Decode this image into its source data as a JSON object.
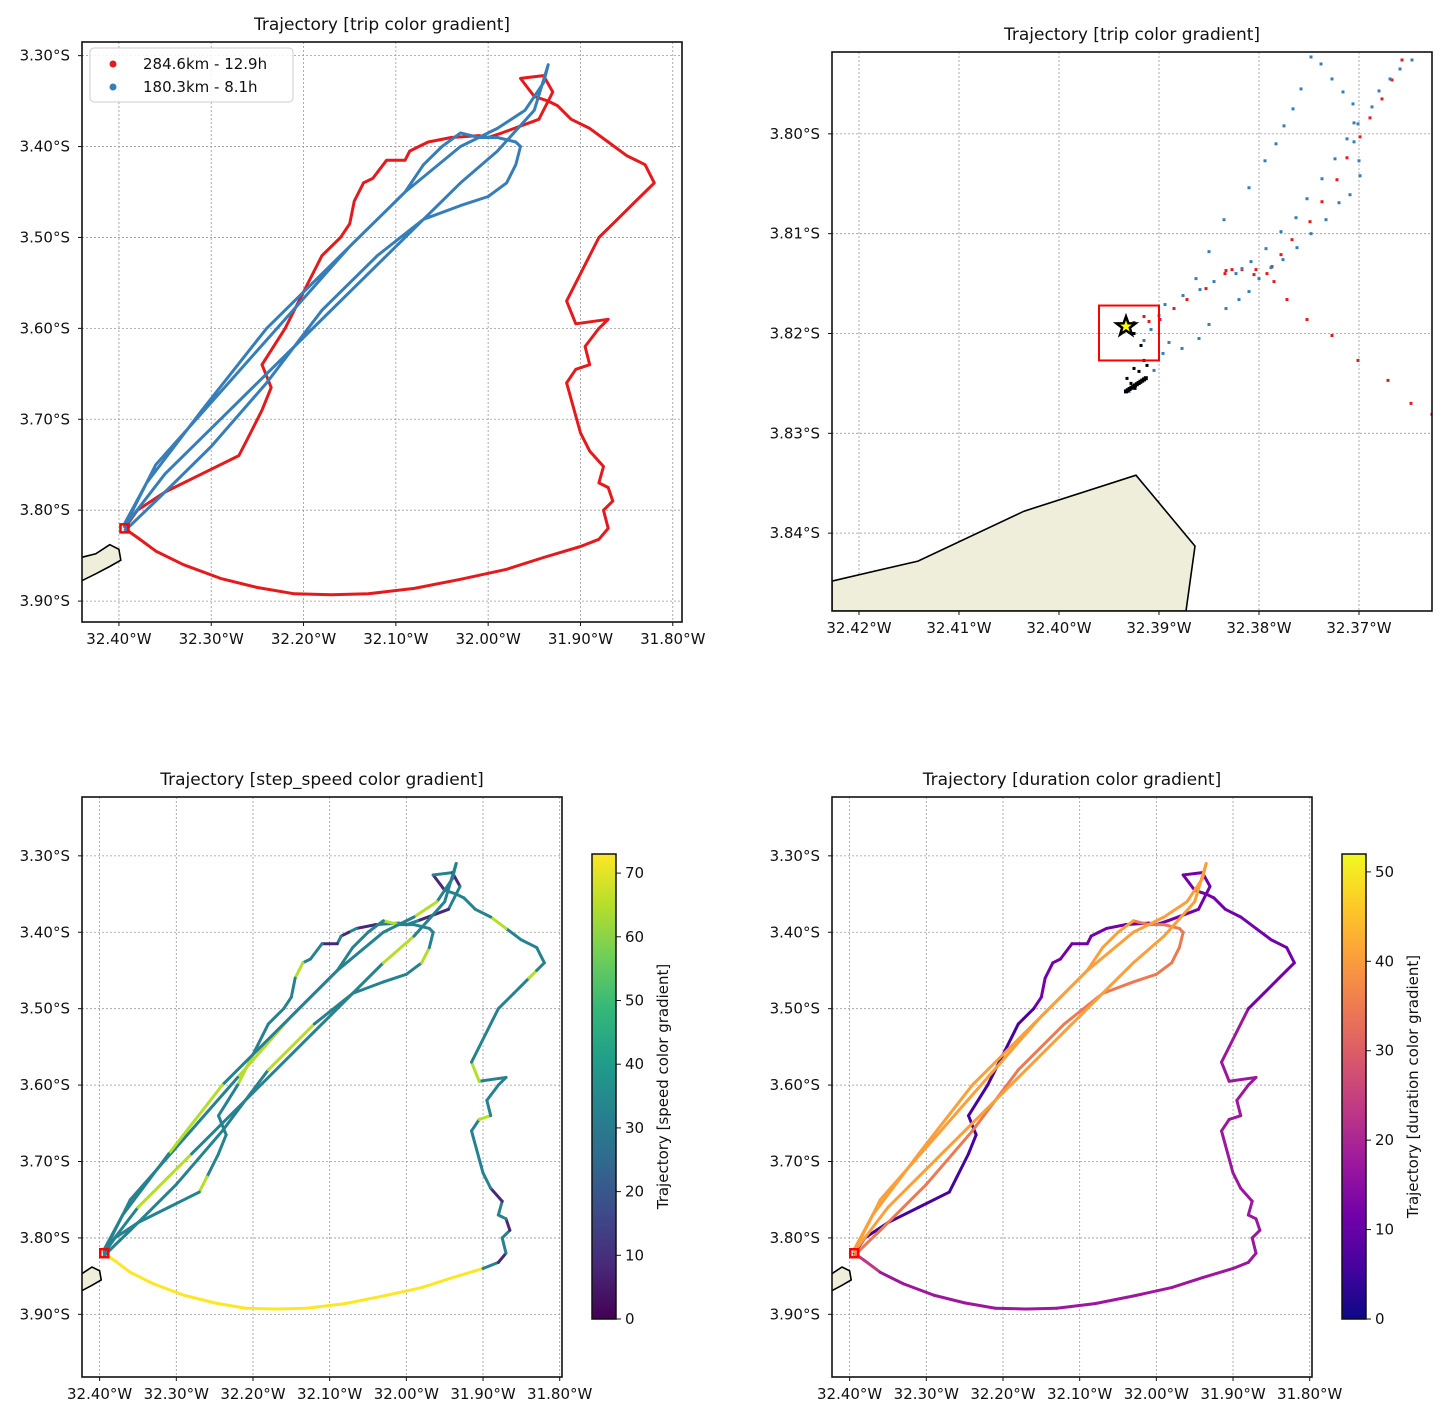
{
  "colors": {
    "trip1": "#e41a1c",
    "trip2": "#377eb8",
    "land": "#efeedb",
    "start_marker": "#ff0000",
    "star_fill": "#ffff00"
  },
  "chart_data": [
    {
      "type": "line",
      "panel": "top-left",
      "title": "Trajectory [trip color gradient]",
      "xlim": [
        -32.44,
        -31.79
      ],
      "ylim": [
        -3.923,
        -3.285
      ],
      "xticks": [
        -32.4,
        -32.3,
        -32.2,
        -32.1,
        -32.0,
        -31.9,
        -31.8
      ],
      "xtick_labels": [
        "32.40°W",
        "32.30°W",
        "32.20°W",
        "32.10°W",
        "32.00°W",
        "31.90°W",
        "31.80°W"
      ],
      "yticks": [
        -3.3,
        -3.4,
        -3.5,
        -3.6,
        -3.7,
        -3.8,
        -3.9
      ],
      "ytick_labels": [
        "3.30°S",
        "3.40°S",
        "3.50°S",
        "3.60°S",
        "3.70°S",
        "3.80°S",
        "3.90°S"
      ],
      "grid": true,
      "legend": {
        "position": "top-left",
        "entries": [
          "284.6km - 12.9h",
          "180.3km - 8.1h"
        ]
      },
      "series": [
        {
          "name": "284.6km - 12.9h",
          "color": "#e41a1c",
          "lon": [
            -32.394,
            -32.38,
            -32.36,
            -32.33,
            -32.29,
            -32.25,
            -32.21,
            -32.17,
            -32.13,
            -32.08,
            -32.03,
            -31.98,
            -31.94,
            -31.9,
            -31.88,
            -31.87,
            -31.875,
            -31.865,
            -31.87,
            -31.88,
            -31.875,
            -31.89,
            -31.9,
            -31.915,
            -31.905,
            -31.89,
            -31.895,
            -31.88,
            -31.87,
            -31.905,
            -31.915,
            -31.905,
            -31.88,
            -31.86,
            -31.84,
            -31.83,
            -31.82,
            -31.83,
            -31.85,
            -31.87,
            -31.89,
            -31.91,
            -31.925,
            -31.935,
            -31.95,
            -31.965,
            -31.94,
            -31.93,
            -31.945,
            -31.985,
            -32.0,
            -32.01,
            -32.04,
            -32.065,
            -32.075,
            -32.085,
            -32.09,
            -32.11,
            -32.125,
            -32.135,
            -32.145,
            -32.15,
            -32.16,
            -32.18,
            -32.2,
            -32.22,
            -32.245,
            -32.235,
            -32.245,
            -32.26,
            -32.27,
            -32.31,
            -32.35,
            -32.38,
            -32.394
          ],
          "lat": [
            -3.82,
            -3.83,
            -3.845,
            -3.86,
            -3.875,
            -3.885,
            -3.892,
            -3.893,
            -3.892,
            -3.886,
            -3.876,
            -3.865,
            -3.852,
            -3.84,
            -3.832,
            -3.82,
            -3.8,
            -3.79,
            -3.775,
            -3.77,
            -3.752,
            -3.735,
            -3.715,
            -3.66,
            -3.645,
            -3.64,
            -3.62,
            -3.6,
            -3.59,
            -3.595,
            -3.57,
            -3.55,
            -3.5,
            -3.48,
            -3.46,
            -3.45,
            -3.44,
            -3.42,
            -3.41,
            -3.395,
            -3.38,
            -3.37,
            -3.355,
            -3.35,
            -3.345,
            -3.325,
            -3.322,
            -3.34,
            -3.37,
            -3.385,
            -3.39,
            -3.388,
            -3.39,
            -3.395,
            -3.4,
            -3.405,
            -3.415,
            -3.415,
            -3.435,
            -3.44,
            -3.46,
            -3.485,
            -3.5,
            -3.52,
            -3.56,
            -3.6,
            -3.64,
            -3.665,
            -3.69,
            -3.72,
            -3.74,
            -3.76,
            -3.78,
            -3.8,
            -3.82
          ]
        },
        {
          "name": "180.3km - 8.1h",
          "color": "#377eb8",
          "lon": [
            -32.394,
            -32.36,
            -32.3,
            -32.24,
            -32.18,
            -32.12,
            -32.07,
            -32.03,
            -32.0,
            -31.98,
            -31.97,
            -31.965,
            -31.97,
            -31.99,
            -32.01,
            -32.03,
            -32.05,
            -32.07,
            -32.09,
            -32.15,
            -32.22,
            -32.29,
            -32.36,
            -32.394,
            -32.35,
            -32.28,
            -32.2,
            -32.12,
            -32.06,
            -32.03,
            -31.99,
            -31.95,
            -31.935,
            -31.94,
            -31.96,
            -31.99,
            -32.03,
            -32.09,
            -32.16,
            -32.24,
            -32.31,
            -32.37,
            -32.394
          ],
          "lat": [
            -3.823,
            -3.79,
            -3.73,
            -3.66,
            -3.58,
            -3.52,
            -3.48,
            -3.465,
            -3.455,
            -3.44,
            -3.42,
            -3.4,
            -3.395,
            -3.39,
            -3.39,
            -3.385,
            -3.4,
            -3.42,
            -3.45,
            -3.51,
            -3.59,
            -3.67,
            -3.75,
            -3.818,
            -3.76,
            -3.69,
            -3.61,
            -3.53,
            -3.47,
            -3.44,
            -3.405,
            -3.36,
            -3.31,
            -3.33,
            -3.36,
            -3.38,
            -3.4,
            -3.45,
            -3.52,
            -3.6,
            -3.69,
            -3.77,
            -3.815
          ]
        }
      ]
    },
    {
      "type": "scatter",
      "panel": "top-right",
      "title": "Trajectory [trip color gradient]",
      "xlim": [
        -32.4227,
        -32.3627
      ],
      "ylim": [
        -3.8478,
        -3.7918
      ],
      "xticks": [
        -32.42,
        -32.41,
        -32.4,
        -32.39,
        -32.38,
        -32.37
      ],
      "xtick_labels": [
        "32.42°W",
        "32.41°W",
        "32.40°W",
        "32.39°W",
        "32.38°W",
        "32.37°W"
      ],
      "yticks": [
        -3.8,
        -3.81,
        -3.82,
        -3.83,
        -3.84
      ],
      "ytick_labels": [
        "3.80°S",
        "3.81°S",
        "3.82°S",
        "3.83°S",
        "3.84°S"
      ],
      "grid": true,
      "series": [
        {
          "name": "284.6km - 12.9h",
          "color": "#e41a1c",
          "lon": [
            -32.3657,
            -32.3667,
            -32.3677,
            -32.3689,
            -32.3699,
            -32.3712,
            -32.3722,
            -32.3737,
            -32.3749,
            -32.3767,
            -32.3778,
            -32.3787,
            -32.3805,
            -32.3817,
            -32.3833,
            -32.3853,
            -32.3872,
            -32.3885,
            -32.3915,
            -32.3925,
            -32.3899,
            -32.391,
            -32.3803,
            -32.3827,
            -32.3834,
            -32.3792,
            -32.3785,
            -32.3772,
            -32.3752,
            -32.3727,
            -32.3701,
            -32.3671,
            -32.3648,
            -32.3627
          ],
          "lat": [
            -3.7926,
            -3.7946,
            -3.7965,
            -3.7984,
            -3.8003,
            -3.8024,
            -3.8046,
            -3.8068,
            -3.8088,
            -3.8106,
            -3.8121,
            -3.8133,
            -3.8141,
            -3.8136,
            -3.8137,
            -3.8155,
            -3.8166,
            -3.8175,
            -3.8183,
            -3.8189,
            -3.8186,
            -3.8188,
            -3.8136,
            -3.8136,
            -3.814,
            -3.814,
            -3.8148,
            -3.8166,
            -3.8186,
            -3.8202,
            -3.8227,
            -3.8247,
            -3.827,
            -3.8281
          ]
        },
        {
          "name": "180.3km - 8.1h",
          "color": "#377eb8",
          "lon": [
            -32.3647,
            -32.3659,
            -32.3669,
            -32.368,
            -32.3687,
            -32.3701,
            -32.3712,
            -32.3724,
            -32.3737,
            -32.3752,
            -32.3763,
            -32.3778,
            -32.3793,
            -32.3808,
            -32.3817,
            -32.3823,
            -32.3845,
            -32.3859,
            -32.3876,
            -32.3894,
            -32.39,
            -32.3908,
            -32.3915,
            -32.3896,
            -32.3877,
            -32.386,
            -32.385,
            -32.3833,
            -32.382,
            -32.381,
            -32.38,
            -32.3788,
            -32.3776,
            -32.3762,
            -32.3748,
            -32.3733,
            -32.372,
            -32.3709,
            -32.3699,
            -32.37,
            -32.3705,
            -32.3705,
            -32.3706,
            -32.3716,
            -32.3727,
            -32.3738,
            -32.3748,
            -32.3758,
            -32.3766,
            -32.3775,
            -32.3783,
            -32.3794,
            -32.381,
            -32.3835,
            -32.385,
            -32.3863,
            -32.389,
            -32.3905,
            -32.3921,
            -32.393
          ],
          "lat": [
            -3.7926,
            -3.7935,
            -3.7945,
            -3.7957,
            -3.7973,
            -3.799,
            -3.8005,
            -3.8025,
            -3.8045,
            -3.8065,
            -3.8084,
            -3.8098,
            -3.8115,
            -3.8128,
            -3.8135,
            -3.814,
            -3.8148,
            -3.8156,
            -3.8162,
            -3.8171,
            -3.8182,
            -3.8196,
            -3.8207,
            -3.822,
            -3.8215,
            -3.8205,
            -3.8191,
            -3.8175,
            -3.8166,
            -3.8158,
            -3.8145,
            -3.8134,
            -3.8126,
            -3.8114,
            -3.81,
            -3.8086,
            -3.8069,
            -3.8061,
            -3.8042,
            -3.8027,
            -3.8008,
            -3.7989,
            -3.797,
            -3.7958,
            -3.7945,
            -3.793,
            -3.7923,
            -3.7955,
            -3.7975,
            -3.7992,
            -3.801,
            -3.8027,
            -3.8054,
            -3.8086,
            -3.8118,
            -3.8145,
            -3.8209,
            -3.8237,
            -3.825,
            -3.8258
          ]
        },
        {
          "name": "track-points",
          "color": "#000000",
          "lon": [
            -32.393,
            -32.3925,
            -32.3918,
            -32.3915,
            -32.3912,
            -32.3925,
            -32.3932,
            -32.3928,
            -32.3924,
            -32.392,
            -32.3933
          ],
          "lat": [
            -3.8193,
            -3.82,
            -3.8212,
            -3.8227,
            -3.8232,
            -3.8235,
            -3.8245,
            -3.825,
            -3.8255,
            -3.8238,
            -3.8258
          ]
        }
      ],
      "markers": {
        "star": {
          "lon": -32.3933,
          "lat": -3.8193
        },
        "highlight_box": {
          "lon": [
            -32.396,
            -32.39
          ],
          "lat": [
            -3.8172,
            -3.8227
          ]
        }
      },
      "land_polygon": {
        "lon": [
          -32.4227,
          -32.4141,
          -32.4035,
          -32.3923,
          -32.3864,
          -32.3873,
          -32.4227
        ],
        "lat": [
          -3.8448,
          -3.8428,
          -3.8378,
          -3.8342,
          -3.8413,
          -3.8478,
          -3.8478
        ]
      }
    },
    {
      "type": "line",
      "panel": "bottom-left",
      "title": "Trajectory [step_speed color gradient]",
      "colorbar": {
        "label": "Trajectory [speed color gradient]",
        "colormap": "viridis",
        "range": [
          0,
          73
        ],
        "ticks": [
          0,
          10,
          20,
          30,
          40,
          50,
          60,
          70
        ]
      },
      "xlim": [
        -32.423,
        -31.797
      ],
      "ylim": [
        -3.982,
        -3.223
      ],
      "xticks": [
        -32.4,
        -32.3,
        -32.2,
        -32.1,
        -32.0,
        -31.9,
        -31.8
      ],
      "xtick_labels": [
        "32.40°W",
        "32.30°W",
        "32.20°W",
        "32.10°W",
        "32.00°W",
        "31.90°W",
        "31.80°W"
      ],
      "yticks": [
        -3.3,
        -3.4,
        -3.5,
        -3.6,
        -3.7,
        -3.8,
        -3.9
      ],
      "ytick_labels": [
        "3.30°S",
        "3.40°S",
        "3.50°S",
        "3.60°S",
        "3.70°S",
        "3.80°S",
        "3.90°S"
      ],
      "grid": true
    },
    {
      "type": "line",
      "panel": "bottom-right",
      "title": "Trajectory [duration color gradient]",
      "colorbar": {
        "label": "Trajectory [duration color gradient]",
        "colormap": "plasma",
        "range": [
          0,
          52
        ],
        "ticks": [
          0,
          10,
          20,
          30,
          40,
          50
        ]
      },
      "xlim": [
        -32.423,
        -31.797
      ],
      "ylim": [
        -3.982,
        -3.223
      ],
      "xticks": [
        -32.4,
        -32.3,
        -32.2,
        -32.1,
        -32.0,
        -31.9,
        -31.8
      ],
      "xtick_labels": [
        "32.40°W",
        "32.30°W",
        "32.20°W",
        "32.10°W",
        "32.00°W",
        "31.90°W",
        "31.80°W"
      ],
      "yticks": [
        -3.3,
        -3.4,
        -3.5,
        -3.6,
        -3.7,
        -3.8,
        -3.9
      ],
      "ytick_labels": [
        "3.30°S",
        "3.40°S",
        "3.50°S",
        "3.60°S",
        "3.70°S",
        "3.80°S",
        "3.90°S"
      ],
      "grid": true
    }
  ],
  "coast_small": {
    "lon": [
      -32.445,
      -32.425,
      -32.41,
      -32.398,
      -32.4,
      -32.41,
      -32.425,
      -32.445
    ],
    "lat": [
      -3.88,
      -3.87,
      -3.862,
      -3.855,
      -3.843,
      -3.838,
      -3.848,
      -3.853
    ]
  }
}
